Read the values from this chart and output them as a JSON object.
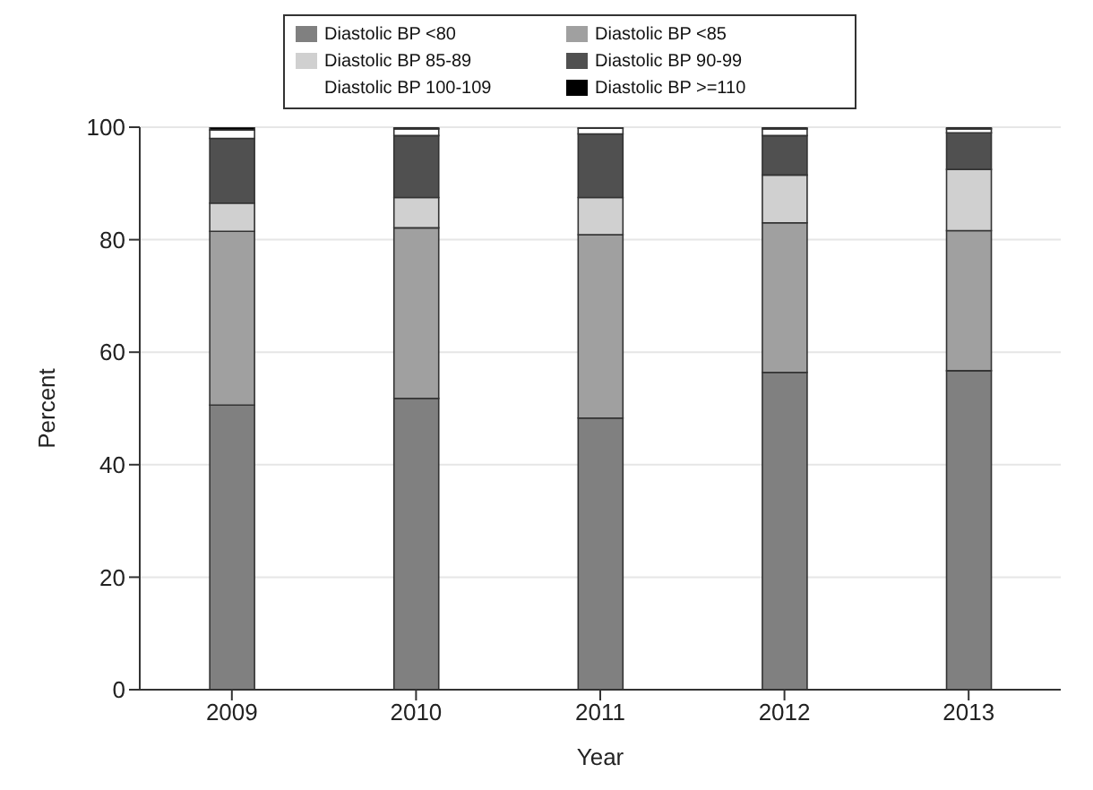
{
  "chart_data": {
    "type": "bar",
    "stacked": true,
    "xlabel": "Year",
    "ylabel": "Percent",
    "categories": [
      "2009",
      "2010",
      "2011",
      "2012",
      "2013"
    ],
    "series": [
      {
        "name": "Diastolic BP <80",
        "color": "#808080",
        "values": [
          50.6,
          51.8,
          48.3,
          56.4,
          56.7
        ]
      },
      {
        "name": "Diastolic BP <85",
        "color": "#a0a0a0",
        "values": [
          30.9,
          30.3,
          32.6,
          26.6,
          24.9
        ]
      },
      {
        "name": "Diastolic BP 85-89",
        "color": "#d0d0d0",
        "values": [
          5.0,
          5.4,
          6.6,
          8.5,
          10.9
        ]
      },
      {
        "name": "Diastolic BP 90-99",
        "color": "#505050",
        "values": [
          11.5,
          11.0,
          11.3,
          7.0,
          6.5
        ]
      },
      {
        "name": "Diastolic BP 100-109",
        "color": "#ffffff",
        "values": [
          1.5,
          1.2,
          1.0,
          1.2,
          0.7
        ]
      },
      {
        "name": "Diastolic BP >=110",
        "color": "#000000",
        "values": [
          0.5,
          0.3,
          0.2,
          0.3,
          0.3
        ]
      }
    ],
    "ylim": [
      0,
      100
    ],
    "yticks": [
      0,
      20,
      40,
      60,
      80,
      100
    ],
    "grid": "y",
    "legend": "top"
  }
}
